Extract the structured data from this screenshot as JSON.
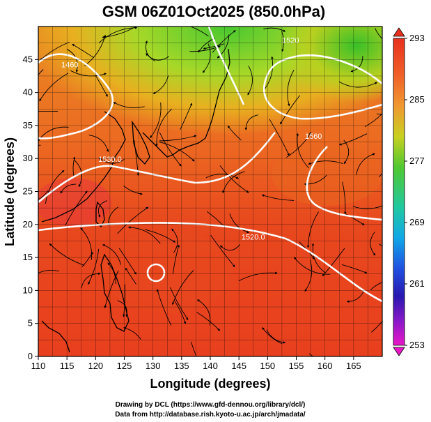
{
  "title": "GSM 06Z01Oct2025 (850.0hPa)",
  "x_axis": {
    "label": "Longitude (degrees)",
    "min": 110,
    "max": 170,
    "ticks": [
      110,
      115,
      120,
      125,
      130,
      135,
      140,
      145,
      150,
      155,
      160,
      165
    ]
  },
  "y_axis": {
    "label": "Latitude  (degrees)",
    "min": 0,
    "max": 50,
    "ticks": [
      0,
      5,
      10,
      15,
      20,
      25,
      30,
      35,
      40,
      45
    ]
  },
  "colorbar": {
    "min": 253,
    "max": 293,
    "ticks": [
      293,
      285,
      277,
      269,
      261,
      253
    ]
  },
  "contours": [
    {
      "label": "1460",
      "lon": 115.5,
      "lat": 43.8
    },
    {
      "label": "1530.0",
      "lon": 122.5,
      "lat": 29.5
    },
    {
      "label": "1520.0",
      "lon": 147.5,
      "lat": 17.7
    },
    {
      "label": "1560",
      "lon": 158.0,
      "lat": 33.0
    },
    {
      "label": "1520",
      "lon": 154.0,
      "lat": 47.5
    }
  ],
  "colors": {
    "field_warm": "#e8401e",
    "field_orange": "#f07020",
    "field_yellow": "#c8d820",
    "field_green": "#50c830",
    "contour": "#ffffff",
    "streamline": "#000000"
  },
  "credits": {
    "line1": "Drawing by DCL (https://www.gfd-dennou.org/library/dcl/)",
    "line2": "Data from http://database.rish.kyoto-u.ac.jp/arch/jmadata/"
  }
}
